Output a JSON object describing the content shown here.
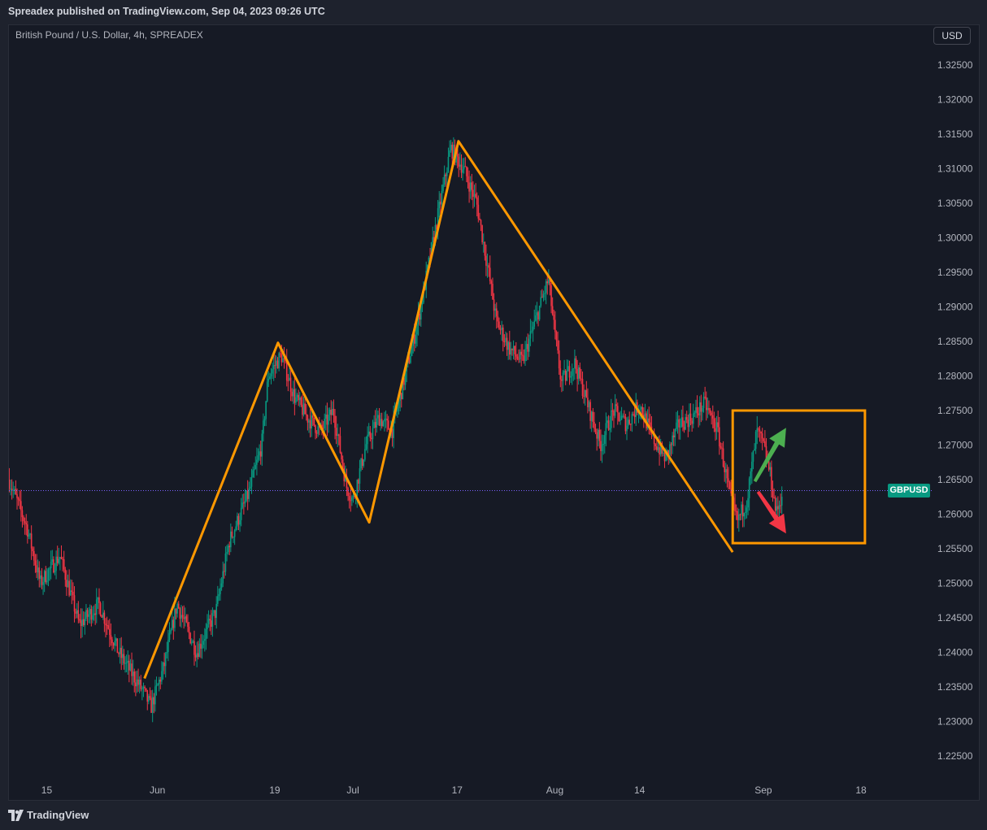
{
  "header": {
    "published_text": "Spreadex published on TradingView.com, Sep 04, 2023 09:26 UTC"
  },
  "chart_data": {
    "type": "candlestick",
    "title": "British Pound / U.S. Dollar, 4h, SPREADEX",
    "symbol": "GBPUSD",
    "currency": "USD",
    "last_price": 1.2634,
    "ylim": [
      1.2225,
      1.3275
    ],
    "y_ticks": [
      "1.32500",
      "1.32000",
      "1.31500",
      "1.31000",
      "1.30500",
      "1.30000",
      "1.29500",
      "1.29000",
      "1.28500",
      "1.28000",
      "1.27500",
      "1.27000",
      "1.26500",
      "1.26000",
      "1.25500",
      "1.25000",
      "1.24500",
      "1.24000",
      "1.23500",
      "1.23000",
      "1.22500"
    ],
    "x_ticks": [
      "15",
      "Jun",
      "19",
      "Jul",
      "17",
      "Aug",
      "14",
      "Sep",
      "18"
    ],
    "x_tick_days": [
      14,
      31,
      49,
      61,
      77,
      92,
      105,
      124,
      139
    ],
    "x_range_days": [
      8.2,
      150.1
    ],
    "price_path": [
      {
        "day": 8.2,
        "price": 1.265
      },
      {
        "day": 11,
        "price": 1.258
      },
      {
        "day": 13,
        "price": 1.25
      },
      {
        "day": 16,
        "price": 1.254
      },
      {
        "day": 19,
        "price": 1.244
      },
      {
        "day": 22,
        "price": 1.247
      },
      {
        "day": 25,
        "price": 1.24
      },
      {
        "day": 29,
        "price": 1.234
      },
      {
        "day": 30,
        "price": 1.232
      },
      {
        "day": 32,
        "price": 1.238
      },
      {
        "day": 34,
        "price": 1.247
      },
      {
        "day": 37,
        "price": 1.24
      },
      {
        "day": 40,
        "price": 1.246
      },
      {
        "day": 42,
        "price": 1.256
      },
      {
        "day": 45,
        "price": 1.263
      },
      {
        "day": 47,
        "price": 1.27
      },
      {
        "day": 48,
        "price": 1.28
      },
      {
        "day": 50,
        "price": 1.283
      },
      {
        "day": 52,
        "price": 1.277
      },
      {
        "day": 54,
        "price": 1.274
      },
      {
        "day": 56,
        "price": 1.272
      },
      {
        "day": 58,
        "price": 1.275
      },
      {
        "day": 60,
        "price": 1.264
      },
      {
        "day": 61,
        "price": 1.262
      },
      {
        "day": 63,
        "price": 1.27
      },
      {
        "day": 65,
        "price": 1.274
      },
      {
        "day": 67,
        "price": 1.272
      },
      {
        "day": 69,
        "price": 1.28
      },
      {
        "day": 71,
        "price": 1.288
      },
      {
        "day": 73,
        "price": 1.298
      },
      {
        "day": 75,
        "price": 1.308
      },
      {
        "day": 76,
        "price": 1.313
      },
      {
        "day": 78,
        "price": 1.31
      },
      {
        "day": 80,
        "price": 1.305
      },
      {
        "day": 82,
        "price": 1.294
      },
      {
        "day": 83,
        "price": 1.288
      },
      {
        "day": 85,
        "price": 1.284
      },
      {
        "day": 87,
        "price": 1.282
      },
      {
        "day": 89,
        "price": 1.288
      },
      {
        "day": 91,
        "price": 1.294
      },
      {
        "day": 92,
        "price": 1.286
      },
      {
        "day": 93,
        "price": 1.279
      },
      {
        "day": 95,
        "price": 1.282
      },
      {
        "day": 97,
        "price": 1.276
      },
      {
        "day": 99,
        "price": 1.27
      },
      {
        "day": 101,
        "price": 1.275
      },
      {
        "day": 103,
        "price": 1.273
      },
      {
        "day": 105,
        "price": 1.276
      },
      {
        "day": 107,
        "price": 1.271
      },
      {
        "day": 109,
        "price": 1.268
      },
      {
        "day": 111,
        "price": 1.273
      },
      {
        "day": 113,
        "price": 1.274
      },
      {
        "day": 115,
        "price": 1.276
      },
      {
        "day": 117,
        "price": 1.272
      },
      {
        "day": 119,
        "price": 1.262
      },
      {
        "day": 120,
        "price": 1.259
      },
      {
        "day": 121.5,
        "price": 1.262
      },
      {
        "day": 123,
        "price": 1.272
      },
      {
        "day": 124,
        "price": 1.27
      },
      {
        "day": 125,
        "price": 1.266
      },
      {
        "day": 126,
        "price": 1.26
      },
      {
        "day": 127,
        "price": 1.2634
      }
    ],
    "annotations": {
      "zigzag": [
        {
          "day": 29,
          "price": 1.2362
        },
        {
          "day": 49.5,
          "price": 1.2848
        },
        {
          "day": 63.5,
          "price": 1.2588
        },
        {
          "day": 77.2,
          "price": 1.314
        },
        {
          "day": 119.3,
          "price": 1.2545
        }
      ],
      "box": {
        "day_start": 119.3,
        "day_end": 139.6,
        "price_top": 1.275,
        "price_bottom": 1.2558
      },
      "up_arrow": {
        "from_day": 122.6,
        "from_price": 1.2648,
        "to_day": 127.5,
        "to_price": 1.2725
      },
      "down_arrow": {
        "from_day": 123.3,
        "from_price": 1.2633,
        "to_day": 127.5,
        "to_price": 1.2572
      },
      "zigzag_color": "#ff9800",
      "up_color": "#4caf50",
      "down_color": "#f23645",
      "bull_color": "#089981",
      "bear_color": "#f23645"
    }
  },
  "footer": {
    "brand": "TradingView"
  }
}
